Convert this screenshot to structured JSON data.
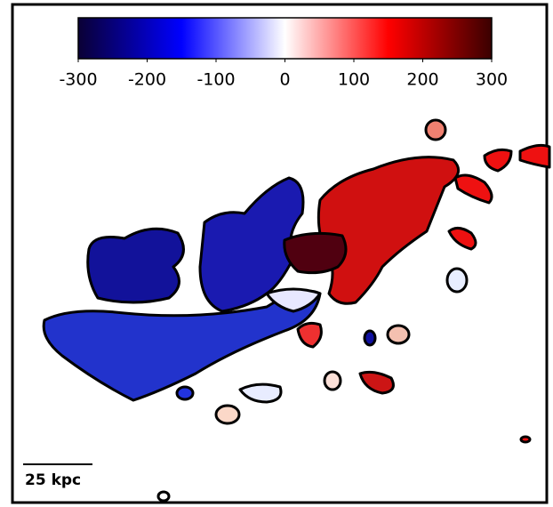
{
  "chart_data": {
    "type": "colormap-image",
    "colorbar": {
      "clim": [
        -300,
        300
      ],
      "ticks": [
        -300,
        -200,
        -100,
        0,
        100,
        200,
        300
      ],
      "colormap": [
        "#0a0035",
        "#0000ff",
        "#ffffff",
        "#ff0000",
        "#3a0000"
      ]
    },
    "scale_bar_label": "25 kpc"
  }
}
